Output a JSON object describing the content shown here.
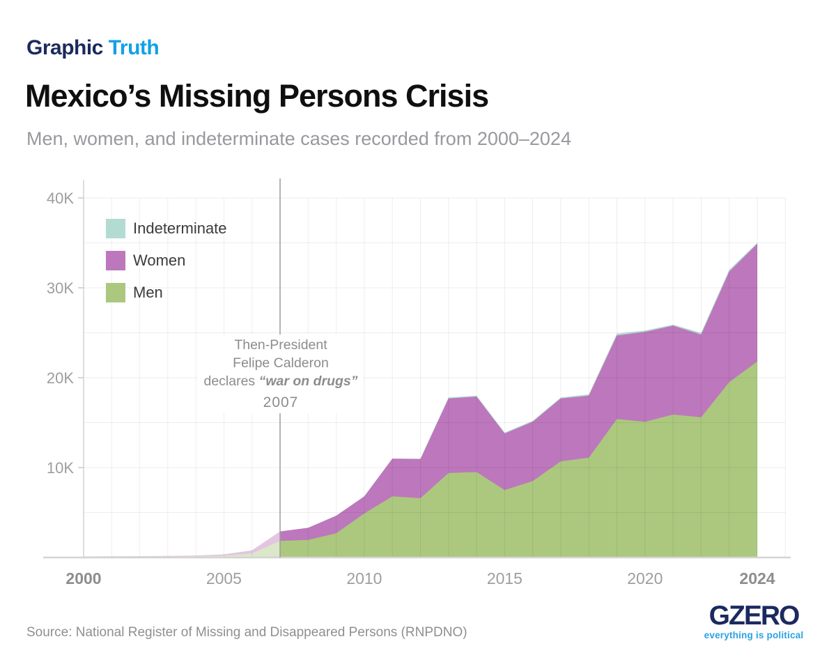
{
  "brand": {
    "graphic": "Graphic",
    "truth": "Truth"
  },
  "header": {
    "title": "Mexico’s Missing Persons Crisis",
    "subtitle": "Men, women, and indeterminate cases recorded from 2000–2024"
  },
  "chart_data": {
    "type": "area",
    "stacked": true,
    "title": "Mexico’s Missing Persons Crisis",
    "x": [
      2000,
      2001,
      2002,
      2003,
      2004,
      2005,
      2006,
      2007,
      2008,
      2009,
      2010,
      2011,
      2012,
      2013,
      2014,
      2015,
      2016,
      2017,
      2018,
      2019,
      2020,
      2021,
      2022,
      2023,
      2024
    ],
    "series": [
      {
        "name": "Men",
        "color": "#abc87e",
        "values": [
          80,
          90,
          100,
          110,
          130,
          200,
          450,
          1850,
          1950,
          2700,
          4900,
          6800,
          6600,
          9400,
          9500,
          7500,
          8500,
          10700,
          11100,
          15400,
          15100,
          15900,
          15600,
          19500,
          21800
        ]
      },
      {
        "name": "Women",
        "color": "#bd77bc",
        "values": [
          40,
          50,
          50,
          60,
          80,
          150,
          350,
          1050,
          1350,
          1950,
          1900,
          4200,
          4350,
          8300,
          8400,
          6300,
          6600,
          7000,
          6900,
          9300,
          10000,
          9900,
          9200,
          12300,
          13100
        ]
      },
      {
        "name": "Indeterminate",
        "color": "#b2dcd2",
        "values": [
          0,
          0,
          0,
          0,
          0,
          0,
          0,
          0,
          0,
          0,
          0,
          0,
          50,
          100,
          100,
          100,
          100,
          100,
          150,
          200,
          150,
          100,
          200,
          200,
          100
        ]
      }
    ],
    "ylim": [
      0,
      40000
    ],
    "y_ticks": [
      {
        "value": 10000,
        "label": "10K"
      },
      {
        "value": 20000,
        "label": "20K"
      },
      {
        "value": 30000,
        "label": "30K"
      },
      {
        "value": 40000,
        "label": "40K"
      }
    ],
    "x_ticks": [
      {
        "year": 2000,
        "label": "2000",
        "bold": true
      },
      {
        "year": 2005,
        "label": "2005",
        "bold": false
      },
      {
        "year": 2010,
        "label": "2010",
        "bold": false
      },
      {
        "year": 2015,
        "label": "2015",
        "bold": false
      },
      {
        "year": 2020,
        "label": "2020",
        "bold": false
      },
      {
        "year": 2024,
        "label": "2024",
        "bold": true
      }
    ],
    "grid": {
      "x_interval_years": 1,
      "y_interval": 5000,
      "x_end_year": 2025
    },
    "faded_before_year": 2007,
    "faded_opacity": 0.42,
    "event_line": {
      "year": 2007
    },
    "annotation": {
      "line1": "Then-President",
      "line2": "Felipe Calderon",
      "line3_prefix": "declares ",
      "line3_emphasis": "“war on drugs”",
      "year_label": "2007"
    },
    "legend_position": "top-left",
    "colors": {
      "grid": "rgba(0,0,0,0.07)",
      "axis": "#cccccc",
      "baseline": "#d4d4d4",
      "tick_label": "#9e9e9e",
      "tick_label_bold": "#8d8d8d",
      "event_line": "#9c9c9c"
    }
  },
  "footer": {
    "source": "Source: National Register of Missing and Disappeared Persons (RNPDNO)",
    "logo": {
      "name": "GZERO",
      "tagline": "everything is political"
    }
  }
}
